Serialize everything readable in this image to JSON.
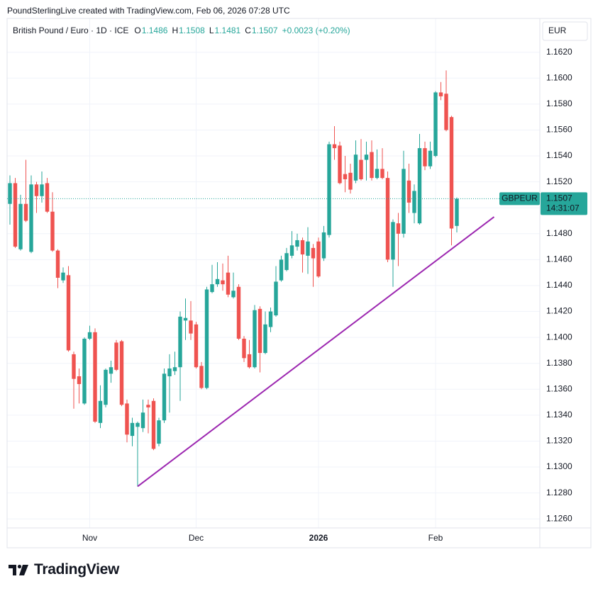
{
  "header": {
    "credit": "PoundSterlingLive created with TradingView.com, Feb 06, 2026 07:28 UTC"
  },
  "footer": {
    "brand": "TradingView"
  },
  "chart_data": {
    "type": "candlestick",
    "title": "British Pound / Euro · 1D · ICE",
    "open_label": "O",
    "high_label": "H",
    "low_label": "L",
    "close_label": "C",
    "change": "+0.0023 (+0.20%)",
    "currency": "EUR",
    "symbol": "GBPEUR",
    "countdown": "14:31:07",
    "up_color": "#26a69a",
    "down_color": "#ef5350",
    "grid": true,
    "last_price_line": true,
    "categories": [
      null,
      null,
      null,
      null,
      null,
      null,
      null,
      null,
      null,
      null,
      null,
      null,
      null,
      null,
      null,
      "Nov",
      null,
      null,
      null,
      null,
      null,
      null,
      null,
      null,
      null,
      null,
      null,
      null,
      null,
      null,
      null,
      null,
      null,
      null,
      null,
      "Dec",
      null,
      null,
      null,
      null,
      null,
      null,
      null,
      null,
      null,
      null,
      null,
      null,
      null,
      null,
      null,
      null,
      null,
      null,
      null,
      null,
      null,
      null,
      "2026",
      null,
      null,
      null,
      null,
      null,
      null,
      null,
      null,
      null,
      null,
      null,
      null,
      null,
      null,
      null,
      null,
      null,
      null,
      null,
      null,
      null,
      "Feb",
      null,
      null,
      null,
      null
    ],
    "open": [
      1.1503,
      1.1519,
      1.1468,
      1.1503,
      1.1466,
      1.1518,
      1.1509,
      1.1519,
      1.1497,
      1.1467,
      1.1444,
      1.1448,
      1.1387,
      1.137,
      1.1349,
      1.1399,
      1.1404,
      1.1334,
      1.1348,
      1.1372,
      1.1396,
      1.1397,
      1.1349,
      1.1324,
      1.1331,
      1.133,
      1.1348,
      1.1351,
      1.1318,
      1.1336,
      1.137,
      1.1374,
      1.1377,
      1.1413,
      1.1413,
      1.141,
      1.1378,
      1.1361,
      1.1435,
      1.1441,
      1.1444,
      1.145,
      1.1431,
      1.1439,
      1.1399,
      1.1387,
      1.1377,
      1.1422,
      1.1388,
      1.1408,
      1.1417,
      1.1444,
      1.1452,
      1.1463,
      1.147,
      1.1475,
      1.1463,
      1.1469,
      1.1474,
      1.1461,
      1.1479,
      1.1549,
      1.1548,
      1.1526,
      1.1527,
      1.1521,
      1.1537,
      1.1537,
      1.1543,
      1.1523,
      1.153,
      1.1523,
      1.146,
      1.1488,
      1.148,
      1.1521,
      1.1496,
      1.1488,
      1.1546,
      1.1532,
      1.154,
      1.1589,
      1.1588,
      1.157,
      1.1486
    ],
    "high": [
      1.1525,
      1.1523,
      1.151,
      1.1537,
      1.1525,
      1.152,
      1.1528,
      1.1523,
      1.1512,
      1.1468,
      1.1454,
      1.1455,
      1.1389,
      1.1376,
      1.14,
      1.1409,
      1.1407,
      1.1363,
      1.1376,
      1.1382,
      1.1398,
      1.1398,
      1.1352,
      1.1338,
      1.1335,
      1.1352,
      1.1352,
      1.1353,
      1.1338,
      1.1376,
      1.1387,
      1.1389,
      1.142,
      1.143,
      1.1428,
      1.1412,
      1.1381,
      1.1439,
      1.1456,
      1.1458,
      1.1457,
      1.1463,
      1.145,
      1.1441,
      1.1401,
      1.1398,
      1.1425,
      1.1424,
      1.142,
      1.1423,
      1.1455,
      1.1463,
      1.1469,
      1.1482,
      1.148,
      1.1477,
      1.1485,
      1.1472,
      1.1477,
      1.1486,
      1.1551,
      1.1563,
      1.1551,
      1.154,
      1.1534,
      1.1552,
      1.1553,
      1.1551,
      1.1552,
      1.1545,
      1.1546,
      1.1528,
      1.1491,
      1.1496,
      1.1544,
      1.1534,
      1.1518,
      1.1557,
      1.1551,
      1.1551,
      1.159,
      1.1597,
      1.1606,
      1.1571,
      1.1508
    ],
    "low": [
      1.1487,
      1.1469,
      1.1467,
      1.1489,
      1.1465,
      1.1496,
      1.1504,
      1.1496,
      1.1466,
      1.1438,
      1.1442,
      1.1389,
      1.1345,
      1.1349,
      1.1348,
      1.1398,
      1.1334,
      1.133,
      1.1346,
      1.1365,
      1.1374,
      1.1347,
      1.1319,
      1.1316,
      1.1285,
      1.1327,
      1.1326,
      1.1313,
      1.1316,
      1.1334,
      1.1342,
      1.1371,
      1.1351,
      1.1398,
      1.1398,
      1.1376,
      1.136,
      1.136,
      1.1434,
      1.1439,
      1.1436,
      1.1431,
      1.143,
      1.1398,
      1.1381,
      1.1376,
      1.1376,
      1.1373,
      1.1387,
      1.1404,
      1.1416,
      1.1443,
      1.1451,
      1.1461,
      1.1467,
      1.145,
      1.1449,
      1.1439,
      1.1446,
      1.1459,
      1.1477,
      1.1537,
      1.1518,
      1.1512,
      1.1511,
      1.1519,
      1.1521,
      1.1521,
      1.1521,
      1.1522,
      1.1522,
      1.1458,
      1.1439,
      1.1455,
      1.1477,
      1.1496,
      1.1488,
      1.1487,
      1.1529,
      1.153,
      1.1539,
      1.1583,
      1.1559,
      1.1471,
      1.1481
    ],
    "close": [
      1.1519,
      1.147,
      1.1503,
      1.149,
      1.1518,
      1.1509,
      1.1518,
      1.1497,
      1.1467,
      1.1446,
      1.145,
      1.139,
      1.1368,
      1.1364,
      1.1399,
      1.1404,
      1.1335,
      1.1351,
      1.1375,
      1.1377,
      1.1375,
      1.1348,
      1.1325,
      1.1334,
      1.1334,
      1.1342,
      1.1346,
      1.1314,
      1.1336,
      1.1372,
      1.1376,
      1.1377,
      1.1416,
      1.1415,
      1.1403,
      1.1377,
      1.1361,
      1.1437,
      1.1441,
      1.1445,
      1.1441,
      1.1433,
      1.1436,
      1.1399,
      1.1384,
      1.1377,
      1.1421,
      1.1388,
      1.141,
      1.142,
      1.1443,
      1.146,
      1.1465,
      1.1471,
      1.1475,
      1.1464,
      1.1474,
      1.1461,
      1.1447,
      1.1481,
      1.1549,
      1.1546,
      1.1519,
      1.1522,
      1.1514,
      1.1541,
      1.1522,
      1.1541,
      1.1523,
      1.153,
      1.1523,
      1.146,
      1.1489,
      1.148,
      1.153,
      1.1504,
      1.1513,
      1.1546,
      1.1532,
      1.1544,
      1.1589,
      1.1586,
      1.156,
      1.1484,
      1.1507
    ],
    "trendline": {
      "color": "#9c27b0",
      "index": [
        24,
        91
      ],
      "values": [
        1.1285,
        1.1493
      ]
    },
    "ylim": [
      1.1253,
      1.1645
    ],
    "yticks": [
      {
        "value": 1.126,
        "label": "1.1260"
      },
      {
        "value": 1.128,
        "label": "1.1280"
      },
      {
        "value": 1.13,
        "label": "1.1300"
      },
      {
        "value": 1.132,
        "label": "1.1320"
      },
      {
        "value": 1.134,
        "label": "1.1340"
      },
      {
        "value": 1.136,
        "label": "1.1360"
      },
      {
        "value": 1.138,
        "label": "1.1380"
      },
      {
        "value": 1.14,
        "label": "1.1400"
      },
      {
        "value": 1.142,
        "label": "1.1420"
      },
      {
        "value": 1.144,
        "label": "1.1440"
      },
      {
        "value": 1.146,
        "label": "1.1460"
      },
      {
        "value": 1.148,
        "label": "1.1480"
      },
      {
        "value": 1.15,
        "label": "1.1500"
      },
      {
        "value": 1.152,
        "label": "1.1520"
      },
      {
        "value": 1.154,
        "label": "1.1540"
      },
      {
        "value": 1.156,
        "label": "1.1560"
      },
      {
        "value": 1.158,
        "label": "1.1580"
      },
      {
        "value": 1.16,
        "label": "1.1600"
      },
      {
        "value": 1.162,
        "label": "1.1620"
      }
    ]
  }
}
